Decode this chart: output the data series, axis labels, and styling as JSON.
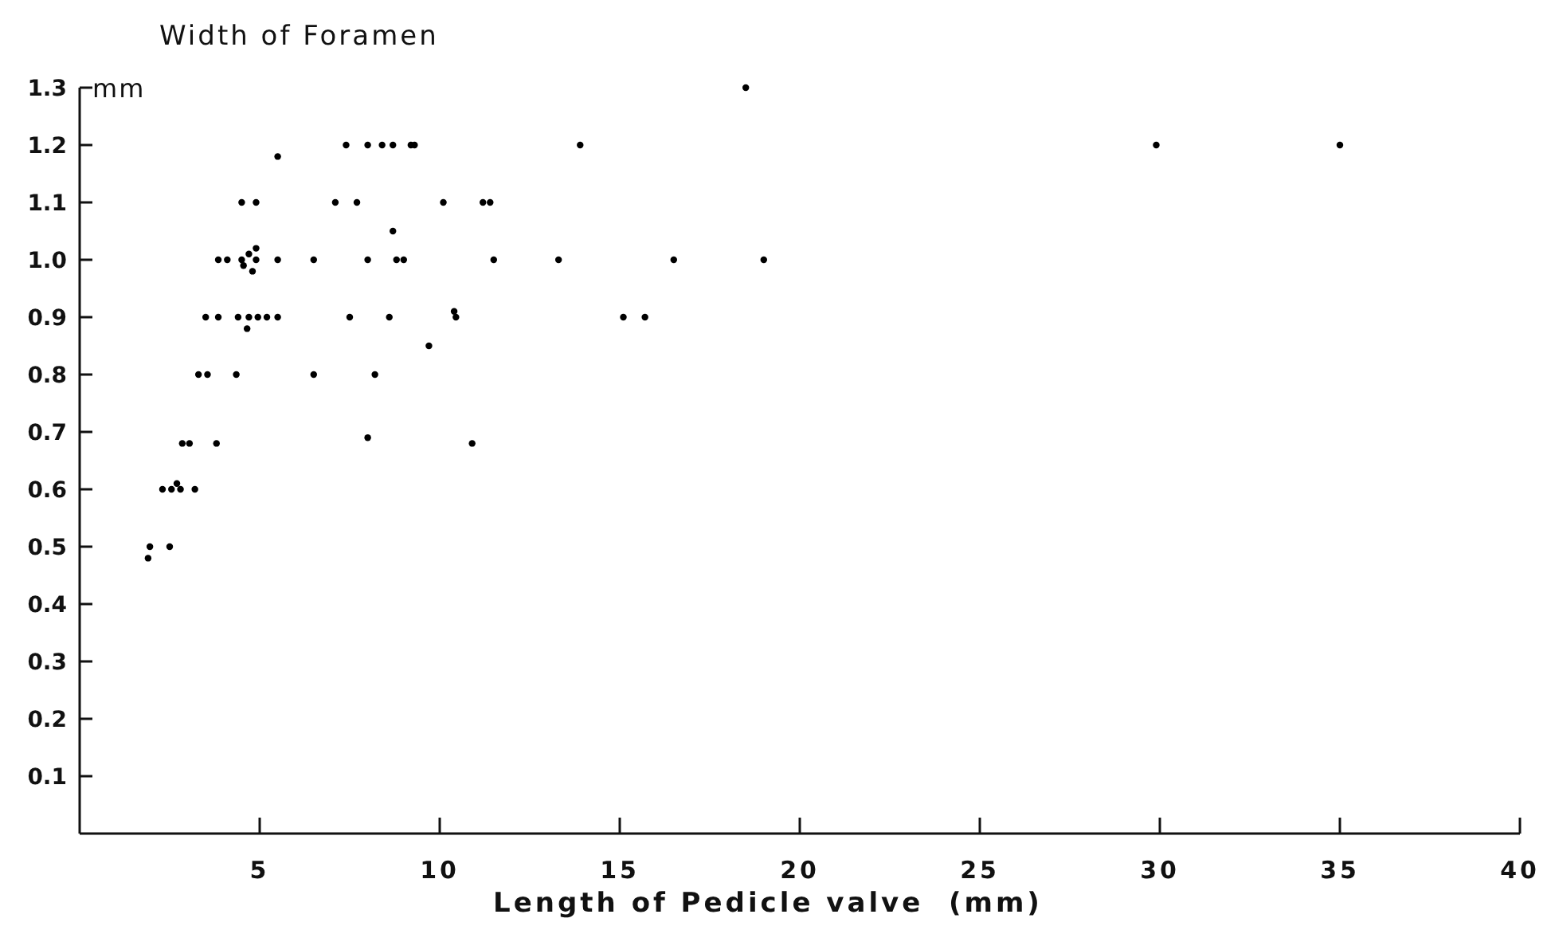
{
  "chart_data": {
    "type": "scatter",
    "ylabel": "Width of Foramen",
    "xlabel": "Length of Pedicle valve  (mm)",
    "annotations": [
      "mm"
    ],
    "x": [
      7.4,
      8.0,
      8.4,
      8.7,
      9.2,
      9.3,
      5.5,
      4.5,
      4.9,
      7.1,
      7.7,
      10.1,
      11.2,
      11.4,
      8.7,
      3.85,
      4.1,
      4.5,
      4.9,
      5.5,
      6.5,
      8.0,
      8.8,
      9.0,
      11.5,
      4.7,
      4.9,
      4.55,
      4.8,
      18.5,
      13.9,
      13.3,
      16.5,
      19.0,
      15.1,
      15.7,
      29.9,
      35.0,
      3.5,
      3.85,
      4.4,
      4.7,
      4.95,
      5.2,
      5.5,
      7.5,
      8.6,
      10.4,
      10.45,
      4.65,
      9.7,
      3.3,
      3.55,
      4.35,
      6.5,
      8.2,
      2.85,
      3.05,
      3.8,
      8.0,
      10.9,
      2.3,
      2.55,
      2.7,
      2.8,
      3.2,
      1.9,
      1.95,
      2.5
    ],
    "values": [
      1.2,
      1.2,
      1.2,
      1.2,
      1.2,
      1.2,
      1.18,
      1.1,
      1.1,
      1.1,
      1.1,
      1.1,
      1.1,
      1.1,
      1.05,
      1.0,
      1.0,
      1.0,
      1.0,
      1.0,
      1.0,
      1.0,
      1.0,
      1.0,
      1.0,
      1.01,
      1.02,
      0.99,
      0.98,
      1.3,
      1.2,
      1.0,
      1.0,
      1.0,
      0.9,
      0.9,
      1.2,
      1.2,
      0.9,
      0.9,
      0.9,
      0.9,
      0.9,
      0.9,
      0.9,
      0.9,
      0.9,
      0.91,
      0.9,
      0.88,
      0.85,
      0.8,
      0.8,
      0.8,
      0.8,
      0.8,
      0.68,
      0.68,
      0.68,
      0.69,
      0.68,
      0.6,
      0.6,
      0.61,
      0.6,
      0.6,
      0.48,
      0.5,
      0.5
    ],
    "color": "#000000",
    "marker": "circle",
    "xlim": [
      0,
      40
    ],
    "xticks": [
      5,
      10,
      15,
      20,
      25,
      30,
      35,
      40
    ],
    "ylim": [
      0,
      1.3
    ],
    "yticks": [
      0.1,
      0.2,
      0.3,
      0.4,
      0.5,
      0.6,
      0.7,
      0.8,
      0.9,
      {
        "value": 1.0,
        "label": "1.0"
      },
      1.1,
      1.2,
      1.3
    ],
    "grid": false
  }
}
